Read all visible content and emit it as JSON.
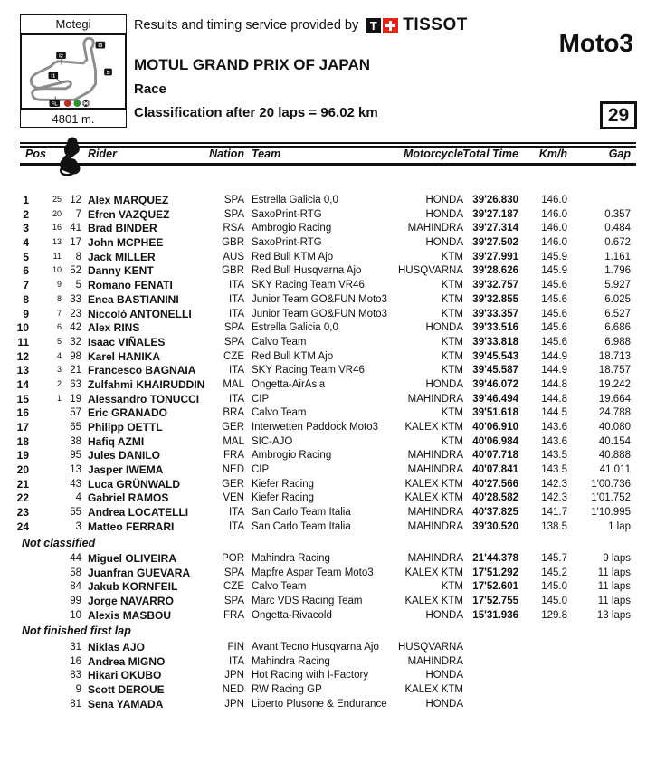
{
  "header": {
    "circuit_name": "Motegi",
    "track_length": "4801 m.",
    "service_text": "Results and timing service provided by",
    "sponsor": {
      "logo_t": "T",
      "brand": "TISSOT",
      "red": "#e2231a"
    },
    "event_title": "MOTUL GRAND PRIX OF JAPAN",
    "session": "Race",
    "classification": "Classification after 20 laps = 96.02 km",
    "category": "Moto3",
    "page_number": "29"
  },
  "map": {
    "markers": {
      "i3": "I3",
      "i2": "I2",
      "i1": "I1",
      "speed_trap": "S",
      "finish_line": "FL"
    },
    "light_red": "#b43025",
    "light_green": "#2f8f35",
    "track_color": "#8c8c8c"
  },
  "table": {
    "columns": {
      "pos": "Pos",
      "rider": "Rider",
      "nation": "Nation",
      "team": "Team",
      "motorcycle": "Motorcycle",
      "total_time": "Total Time",
      "kmh": "Km/h",
      "gap": "Gap"
    },
    "rows": [
      {
        "pos": "1",
        "pts": "25",
        "num": "12",
        "rider": "Alex MARQUEZ",
        "nation": "SPA",
        "team": "Estrella Galicia 0,0",
        "moto": "HONDA",
        "time": "39'26.830",
        "kmh": "146.0",
        "gap": ""
      },
      {
        "pos": "2",
        "pts": "20",
        "num": "7",
        "rider": "Efren VAZQUEZ",
        "nation": "SPA",
        "team": "SaxoPrint-RTG",
        "moto": "HONDA",
        "time": "39'27.187",
        "kmh": "146.0",
        "gap": "0.357"
      },
      {
        "pos": "3",
        "pts": "16",
        "num": "41",
        "rider": "Brad BINDER",
        "nation": "RSA",
        "team": "Ambrogio Racing",
        "moto": "MAHINDRA",
        "time": "39'27.314",
        "kmh": "146.0",
        "gap": "0.484"
      },
      {
        "pos": "4",
        "pts": "13",
        "num": "17",
        "rider": "John MCPHEE",
        "nation": "GBR",
        "team": "SaxoPrint-RTG",
        "moto": "HONDA",
        "time": "39'27.502",
        "kmh": "146.0",
        "gap": "0.672"
      },
      {
        "pos": "5",
        "pts": "11",
        "num": "8",
        "rider": "Jack MILLER",
        "nation": "AUS",
        "team": "Red Bull KTM Ajo",
        "moto": "KTM",
        "time": "39'27.991",
        "kmh": "145.9",
        "gap": "1.161"
      },
      {
        "pos": "6",
        "pts": "10",
        "num": "52",
        "rider": "Danny KENT",
        "nation": "GBR",
        "team": "Red Bull Husqvarna Ajo",
        "moto": "HUSQVARNA",
        "time": "39'28.626",
        "kmh": "145.9",
        "gap": "1.796"
      },
      {
        "pos": "7",
        "pts": "9",
        "num": "5",
        "rider": "Romano FENATI",
        "nation": "ITA",
        "team": "SKY Racing Team  VR46",
        "moto": "KTM",
        "time": "39'32.757",
        "kmh": "145.6",
        "gap": "5.927"
      },
      {
        "pos": "8",
        "pts": "8",
        "num": "33",
        "rider": "Enea BASTIANINI",
        "nation": "ITA",
        "team": "Junior Team GO&FUN Moto3",
        "moto": "KTM",
        "time": "39'32.855",
        "kmh": "145.6",
        "gap": "6.025"
      },
      {
        "pos": "9",
        "pts": "7",
        "num": "23",
        "rider": "Niccolò ANTONELLI",
        "nation": "ITA",
        "team": "Junior Team GO&FUN Moto3",
        "moto": "KTM",
        "time": "39'33.357",
        "kmh": "145.6",
        "gap": "6.527"
      },
      {
        "pos": "10",
        "pts": "6",
        "num": "42",
        "rider": "Alex RINS",
        "nation": "SPA",
        "team": "Estrella Galicia 0,0",
        "moto": "HONDA",
        "time": "39'33.516",
        "kmh": "145.6",
        "gap": "6.686"
      },
      {
        "pos": "11",
        "pts": "5",
        "num": "32",
        "rider": "Isaac VIÑALES",
        "nation": "SPA",
        "team": "Calvo Team",
        "moto": "KTM",
        "time": "39'33.818",
        "kmh": "145.6",
        "gap": "6.988"
      },
      {
        "pos": "12",
        "pts": "4",
        "num": "98",
        "rider": "Karel HANIKA",
        "nation": "CZE",
        "team": "Red Bull KTM Ajo",
        "moto": "KTM",
        "time": "39'45.543",
        "kmh": "144.9",
        "gap": "18.713"
      },
      {
        "pos": "13",
        "pts": "3",
        "num": "21",
        "rider": "Francesco BAGNAIA",
        "nation": "ITA",
        "team": "SKY Racing Team  VR46",
        "moto": "KTM",
        "time": "39'45.587",
        "kmh": "144.9",
        "gap": "18.757"
      },
      {
        "pos": "14",
        "pts": "2",
        "num": "63",
        "rider": "Zulfahmi KHAIRUDDIN",
        "nation": "MAL",
        "team": "Ongetta-AirAsia",
        "moto": "HONDA",
        "time": "39'46.072",
        "kmh": "144.8",
        "gap": "19.242"
      },
      {
        "pos": "15",
        "pts": "1",
        "num": "19",
        "rider": "Alessandro TONUCCI",
        "nation": "ITA",
        "team": "CIP",
        "moto": "MAHINDRA",
        "time": "39'46.494",
        "kmh": "144.8",
        "gap": "19.664"
      },
      {
        "pos": "16",
        "pts": "",
        "num": "57",
        "rider": "Eric GRANADO",
        "nation": "BRA",
        "team": "Calvo Team",
        "moto": "KTM",
        "time": "39'51.618",
        "kmh": "144.5",
        "gap": "24.788"
      },
      {
        "pos": "17",
        "pts": "",
        "num": "65",
        "rider": "Philipp OETTL",
        "nation": "GER",
        "team": "Interwetten Paddock Moto3",
        "moto": "KALEX KTM",
        "time": "40'06.910",
        "kmh": "143.6",
        "gap": "40.080"
      },
      {
        "pos": "18",
        "pts": "",
        "num": "38",
        "rider": "Hafiq AZMI",
        "nation": "MAL",
        "team": "SIC-AJO",
        "moto": "KTM",
        "time": "40'06.984",
        "kmh": "143.6",
        "gap": "40.154"
      },
      {
        "pos": "19",
        "pts": "",
        "num": "95",
        "rider": "Jules DANILO",
        "nation": "FRA",
        "team": "Ambrogio Racing",
        "moto": "MAHINDRA",
        "time": "40'07.718",
        "kmh": "143.5",
        "gap": "40.888"
      },
      {
        "pos": "20",
        "pts": "",
        "num": "13",
        "rider": "Jasper IWEMA",
        "nation": "NED",
        "team": "CIP",
        "moto": "MAHINDRA",
        "time": "40'07.841",
        "kmh": "143.5",
        "gap": "41.011"
      },
      {
        "pos": "21",
        "pts": "",
        "num": "43",
        "rider": "Luca GRÜNWALD",
        "nation": "GER",
        "team": "Kiefer Racing",
        "moto": "KALEX KTM",
        "time": "40'27.566",
        "kmh": "142.3",
        "gap": "1'00.736"
      },
      {
        "pos": "22",
        "pts": "",
        "num": "4",
        "rider": "Gabriel RAMOS",
        "nation": "VEN",
        "team": "Kiefer Racing",
        "moto": "KALEX KTM",
        "time": "40'28.582",
        "kmh": "142.3",
        "gap": "1'01.752"
      },
      {
        "pos": "23",
        "pts": "",
        "num": "55",
        "rider": "Andrea LOCATELLI",
        "nation": "ITA",
        "team": "San Carlo Team Italia",
        "moto": "MAHINDRA",
        "time": "40'37.825",
        "kmh": "141.7",
        "gap": "1'10.995"
      },
      {
        "pos": "24",
        "pts": "",
        "num": "3",
        "rider": "Matteo FERRARI",
        "nation": "ITA",
        "team": "San Carlo Team Italia",
        "moto": "MAHINDRA",
        "time": "39'30.520",
        "kmh": "138.5",
        "gap": "1 lap"
      }
    ],
    "sections": [
      {
        "label": "Not classified",
        "rows": [
          {
            "pos": "",
            "pts": "",
            "num": "44",
            "rider": "Miguel OLIVEIRA",
            "nation": "POR",
            "team": "Mahindra Racing",
            "moto": "MAHINDRA",
            "time": "21'44.378",
            "kmh": "145.7",
            "gap": "9 laps"
          },
          {
            "pos": "",
            "pts": "",
            "num": "58",
            "rider": "Juanfran GUEVARA",
            "nation": "SPA",
            "team": "Mapfre Aspar Team Moto3",
            "moto": "KALEX KTM",
            "time": "17'51.292",
            "kmh": "145.2",
            "gap": "11 laps"
          },
          {
            "pos": "",
            "pts": "",
            "num": "84",
            "rider": "Jakub KORNFEIL",
            "nation": "CZE",
            "team": "Calvo Team",
            "moto": "KTM",
            "time": "17'52.601",
            "kmh": "145.0",
            "gap": "11 laps"
          },
          {
            "pos": "",
            "pts": "",
            "num": "99",
            "rider": "Jorge NAVARRO",
            "nation": "SPA",
            "team": "Marc VDS Racing Team",
            "moto": "KALEX KTM",
            "time": "17'52.755",
            "kmh": "145.0",
            "gap": "11 laps"
          },
          {
            "pos": "",
            "pts": "",
            "num": "10",
            "rider": "Alexis MASBOU",
            "nation": "FRA",
            "team": "Ongetta-Rivacold",
            "moto": "HONDA",
            "time": "15'31.936",
            "kmh": "129.8",
            "gap": "13 laps"
          }
        ]
      },
      {
        "label": "Not finished first lap",
        "rows": [
          {
            "pos": "",
            "pts": "",
            "num": "31",
            "rider": "Niklas AJO",
            "nation": "FIN",
            "team": "Avant Tecno Husqvarna Ajo",
            "moto": "HUSQVARNA",
            "time": "",
            "kmh": "",
            "gap": ""
          },
          {
            "pos": "",
            "pts": "",
            "num": "16",
            "rider": "Andrea MIGNO",
            "nation": "ITA",
            "team": "Mahindra Racing",
            "moto": "MAHINDRA",
            "time": "",
            "kmh": "",
            "gap": ""
          },
          {
            "pos": "",
            "pts": "",
            "num": "83",
            "rider": "Hikari OKUBO",
            "nation": "JPN",
            "team": "Hot Racing with I-Factory",
            "moto": "HONDA",
            "time": "",
            "kmh": "",
            "gap": ""
          },
          {
            "pos": "",
            "pts": "",
            "num": "9",
            "rider": "Scott DEROUE",
            "nation": "NED",
            "team": "RW Racing GP",
            "moto": "KALEX KTM",
            "time": "",
            "kmh": "",
            "gap": ""
          },
          {
            "pos": "",
            "pts": "",
            "num": "81",
            "rider": "Sena YAMADA",
            "nation": "JPN",
            "team": "Liberto Plusone & Endurance",
            "moto": "HONDA",
            "time": "",
            "kmh": "",
            "gap": ""
          }
        ]
      }
    ]
  }
}
